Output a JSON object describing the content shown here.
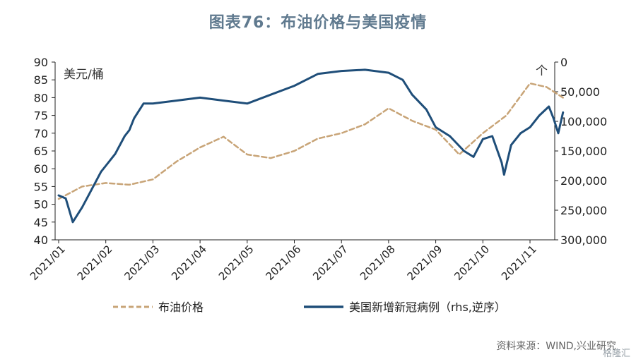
{
  "title": "图表76：布油价格与美国疫情",
  "source": "资料来源：WIND,兴业研究",
  "watermark": "格隆汇",
  "chart_data": {
    "type": "line",
    "left_unit": "美元/桶",
    "right_unit": "个",
    "x_labels": [
      "2021/01",
      "2021/02",
      "2021/03",
      "2021/04",
      "2021/05",
      "2021/06",
      "2021/07",
      "2021/08",
      "2021/09",
      "2021/10",
      "2021/11"
    ],
    "y_left": {
      "min": 40,
      "max": 90,
      "ticks": [
        40,
        45,
        50,
        55,
        60,
        65,
        70,
        75,
        80,
        85,
        90
      ]
    },
    "y_right": {
      "min": 0,
      "max": 300000,
      "inverted": true,
      "ticks": [
        "0",
        "50,000",
        "100,000",
        "150,000",
        "200,000",
        "250,000",
        "300,000"
      ]
    },
    "grid": false,
    "legend_position": "bottom",
    "colors": {
      "brent": "#c8a477",
      "cases": "#1f4e79",
      "axis": "#222222",
      "title": "#607a8f"
    },
    "series": [
      {
        "name": "布油价格",
        "axis": "left",
        "style": "dashed",
        "x": [
          0,
          0.5,
          1,
          1.5,
          2,
          2.5,
          3,
          3.5,
          4,
          4.5,
          5,
          5.5,
          6,
          6.5,
          7,
          7.5,
          8,
          8.5,
          9,
          9.5,
          10,
          10.35,
          10.7
        ],
        "values": [
          51.5,
          55,
          56,
          55.5,
          57,
          62,
          66,
          69,
          64,
          63,
          65,
          68.5,
          70,
          72.5,
          77,
          73.5,
          71,
          64,
          70,
          75,
          84,
          83,
          80
        ]
      },
      {
        "name": "美国新增新冠病例（rhs,逆序）",
        "axis": "right",
        "style": "solid",
        "x": [
          0,
          0.15,
          0.3,
          0.5,
          0.7,
          0.9,
          1,
          1.2,
          1.4,
          1.5,
          1.6,
          1.8,
          2,
          2.5,
          3,
          3.5,
          4,
          4.5,
          5,
          5.5,
          6,
          6.5,
          7,
          7.3,
          7.5,
          7.8,
          8,
          8.3,
          8.6,
          8.8,
          9,
          9.2,
          9.4,
          9.45,
          9.6,
          9.8,
          10,
          10.2,
          10.4,
          10.5,
          10.6,
          10.7
        ],
        "values": [
          225000,
          230000,
          270000,
          245000,
          215000,
          185000,
          175000,
          155000,
          125000,
          115000,
          95000,
          70000,
          70000,
          65000,
          60000,
          65000,
          70000,
          55000,
          40000,
          20000,
          15000,
          13000,
          18000,
          30000,
          55000,
          80000,
          110000,
          125000,
          150000,
          160000,
          130000,
          125000,
          170000,
          190000,
          140000,
          120000,
          110000,
          90000,
          75000,
          95000,
          120000,
          85000
        ]
      }
    ]
  }
}
